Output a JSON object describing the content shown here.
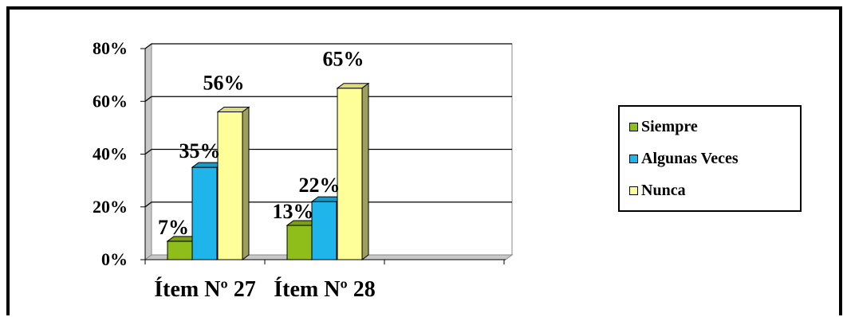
{
  "chart_data": {
    "type": "bar",
    "categories": [
      "Ítem Nº 27",
      "Ítem Nº 28"
    ],
    "series": [
      {
        "name": "Siempre",
        "values": [
          7,
          13
        ],
        "labels": [
          "7%",
          "13%"
        ],
        "color": "#8fbd1a"
      },
      {
        "name": "Algunas Veces",
        "values": [
          35,
          22
        ],
        "labels": [
          "35%",
          "22%"
        ],
        "color": "#1fb5ea"
      },
      {
        "name": "Nunca",
        "values": [
          56,
          65
        ],
        "labels": [
          "56%",
          "65%"
        ],
        "color": "#ffff99"
      }
    ],
    "yticks": [
      "0%",
      "20%",
      "40%",
      "60%",
      "80%"
    ],
    "ylim": [
      0,
      80
    ],
    "grid": true,
    "legend_position": "right",
    "three_d": true
  }
}
